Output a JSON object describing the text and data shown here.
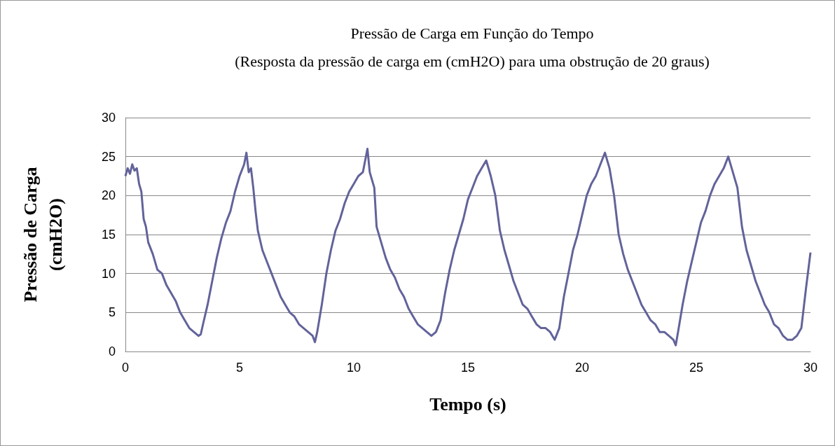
{
  "chart_data": {
    "type": "line",
    "title": "Pressão de Carga em Função do Tempo",
    "subtitle": "(Resposta da pressão de carga em (cmH2O) para uma obstrução de 20 graus)",
    "xlabel": "Tempo (s)",
    "ylabel": "Pressão de Carga (cmH2O)",
    "x": [
      0,
      0.1,
      0.2,
      0.3,
      0.4,
      0.5,
      0.6,
      0.7,
      0.8,
      0.9,
      1.0,
      1.2,
      1.4,
      1.6,
      1.8,
      2.0,
      2.2,
      2.4,
      2.6,
      2.8,
      3.0,
      3.2,
      3.3,
      3.4,
      3.6,
      3.8,
      4.0,
      4.2,
      4.4,
      4.6,
      4.8,
      5.0,
      5.2,
      5.3,
      5.4,
      5.5,
      5.6,
      5.7,
      5.8,
      6.0,
      6.2,
      6.4,
      6.6,
      6.8,
      7.0,
      7.2,
      7.4,
      7.6,
      7.8,
      8.0,
      8.2,
      8.3,
      8.4,
      8.6,
      8.8,
      9.0,
      9.2,
      9.4,
      9.6,
      9.8,
      10.0,
      10.2,
      10.4,
      10.6,
      10.7,
      10.9,
      11.0,
      11.2,
      11.4,
      11.6,
      11.8,
      12.0,
      12.2,
      12.4,
      12.6,
      12.8,
      13.0,
      13.2,
      13.4,
      13.6,
      13.8,
      14.0,
      14.2,
      14.4,
      14.6,
      14.8,
      15.0,
      15.2,
      15.4,
      15.6,
      15.8,
      16.0,
      16.2,
      16.4,
      16.6,
      16.8,
      17.0,
      17.2,
      17.4,
      17.6,
      17.8,
      18.0,
      18.2,
      18.4,
      18.6,
      18.8,
      19.0,
      19.2,
      19.4,
      19.6,
      19.8,
      20.0,
      20.2,
      20.4,
      20.6,
      20.8,
      21.0,
      21.2,
      21.4,
      21.6,
      21.8,
      22.0,
      22.2,
      22.4,
      22.6,
      22.8,
      23.0,
      23.2,
      23.4,
      23.6,
      23.8,
      24.0,
      24.1,
      24.2,
      24.4,
      24.6,
      24.8,
      25.0,
      25.2,
      25.4,
      25.6,
      25.8,
      26.0,
      26.2,
      26.4,
      26.6,
      26.8,
      27.0,
      27.2,
      27.4,
      27.6,
      27.8,
      28.0,
      28.2,
      28.4,
      28.6,
      28.8,
      29.0,
      29.2,
      29.4,
      29.6,
      29.8,
      30
    ],
    "series": [
      {
        "color": "#62639a",
        "values": [
          22.5,
          23.5,
          22.8,
          24,
          23.2,
          23.5,
          21.5,
          20.5,
          17,
          16,
          14,
          12.5,
          10.5,
          10,
          8.5,
          7.5,
          6.5,
          5,
          4,
          3,
          2.5,
          2,
          2.2,
          3.5,
          6,
          9,
          12,
          14.5,
          16.5,
          18,
          20.5,
          22.5,
          24,
          25.5,
          23,
          23.5,
          21,
          18,
          15.5,
          13,
          11.5,
          10,
          8.5,
          7,
          6,
          5,
          4.5,
          3.5,
          3,
          2.5,
          2,
          1.2,
          2.5,
          6,
          10,
          13,
          15.5,
          17,
          19,
          20.5,
          21.5,
          22.5,
          23,
          26,
          23,
          21,
          16,
          14,
          12,
          10.5,
          9.5,
          8,
          7,
          5.5,
          4.5,
          3.5,
          3,
          2.5,
          2,
          2.5,
          4,
          7.5,
          10.5,
          13,
          15,
          17,
          19.5,
          21,
          22.5,
          23.5,
          24.5,
          22.5,
          20,
          15.5,
          13,
          11,
          9,
          7.5,
          6,
          5.5,
          4.5,
          3.5,
          3,
          3,
          2.5,
          1.5,
          3,
          7,
          10,
          13,
          15,
          17.5,
          20,
          21.5,
          22.5,
          24,
          25.5,
          23.5,
          20,
          15,
          12.5,
          10.5,
          9,
          7.5,
          6,
          5,
          4,
          3.5,
          2.5,
          2.5,
          2,
          1.5,
          0.8,
          2.5,
          6,
          9,
          11.5,
          14,
          16.5,
          18,
          20,
          21.5,
          22.5,
          23.5,
          25,
          23,
          21,
          16,
          13,
          11,
          9,
          7.5,
          6,
          5,
          3.5,
          3,
          2,
          1.5,
          1.5,
          2,
          3,
          8,
          12.7
        ]
      }
    ],
    "xlim": [
      0,
      30
    ],
    "xticks": [
      0,
      5,
      10,
      15,
      20,
      25,
      30
    ],
    "ylim": [
      0,
      30
    ],
    "yticks": [
      0,
      5,
      10,
      15,
      20,
      25,
      30
    ],
    "grid": "y",
    "marker": "none",
    "line_style": "solid"
  }
}
